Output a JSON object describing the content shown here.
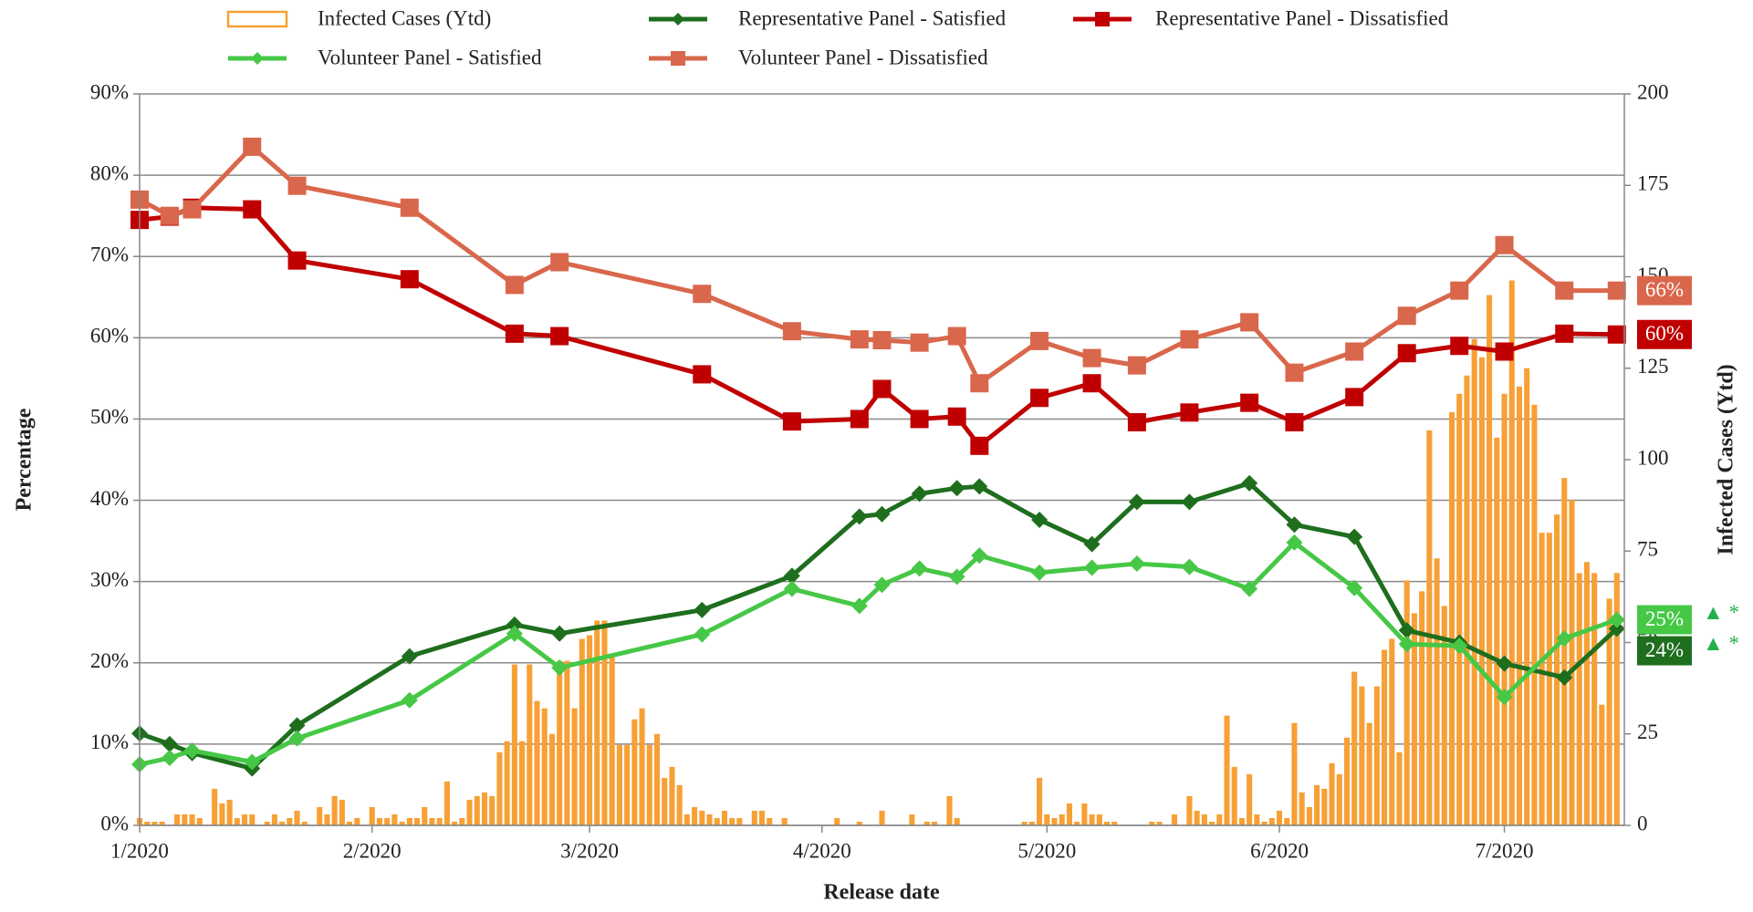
{
  "chart_data": {
    "type": "bar-line",
    "x_title": "Release date",
    "y_title": "Percentage",
    "y2_title": "Infected Cases (Ytd)",
    "xlim": [
      0,
      198
    ],
    "xticks": [
      {
        "value": 0,
        "label": "1/2020"
      },
      {
        "value": 31,
        "label": "2/2020"
      },
      {
        "value": 60,
        "label": "3/2020"
      },
      {
        "value": 91,
        "label": "4/2020"
      },
      {
        "value": 121,
        "label": "5/2020"
      },
      {
        "value": 152,
        "label": "6/2020"
      },
      {
        "value": 182,
        "label": "7/2020"
      }
    ],
    "ylim": [
      0,
      90
    ],
    "yticks": [
      {
        "value": 0,
        "label": "0%"
      },
      {
        "value": 10,
        "label": "10%"
      },
      {
        "value": 20,
        "label": "20%"
      },
      {
        "value": 30,
        "label": "30%"
      },
      {
        "value": 40,
        "label": "40%"
      },
      {
        "value": 50,
        "label": "50%"
      },
      {
        "value": 60,
        "label": "60%"
      },
      {
        "value": 70,
        "label": "70%"
      },
      {
        "value": 80,
        "label": "80%"
      },
      {
        "value": 90,
        "label": "90%"
      }
    ],
    "y2lim": [
      0,
      200
    ],
    "y2ticks": [
      0,
      25,
      50,
      75,
      100,
      125,
      150,
      175,
      200
    ],
    "grid": true,
    "x": [
      0,
      4,
      7,
      15,
      21,
      36,
      50,
      56,
      75,
      87,
      96,
      99,
      104,
      109,
      112,
      120,
      127,
      133,
      140,
      148,
      154,
      162,
      169,
      176,
      182,
      190,
      197
    ],
    "series": [
      {
        "name": "Infected Cases (Ytd)",
        "type": "bar",
        "axis": "y2",
        "color": "#f7a035",
        "x": [
          0,
          1,
          2,
          3,
          4,
          5,
          6,
          7,
          8,
          9,
          10,
          11,
          12,
          13,
          14,
          15,
          16,
          17,
          18,
          19,
          20,
          21,
          22,
          23,
          24,
          25,
          26,
          27,
          28,
          29,
          30,
          31,
          32,
          33,
          34,
          35,
          36,
          37,
          38,
          39,
          40,
          41,
          42,
          43,
          44,
          45,
          46,
          47,
          48,
          49,
          50,
          51,
          52,
          53,
          54,
          55,
          56,
          57,
          58,
          59,
          60,
          61,
          62,
          63,
          64,
          65,
          66,
          67,
          68,
          69,
          70,
          71,
          72,
          73,
          74,
          75,
          76,
          77,
          78,
          79,
          80,
          81,
          82,
          83,
          84,
          85,
          86,
          87,
          88,
          89,
          90,
          91,
          92,
          93,
          94,
          95,
          96,
          97,
          98,
          99,
          100,
          101,
          102,
          103,
          104,
          105,
          106,
          107,
          108,
          109,
          110,
          111,
          112,
          113,
          114,
          115,
          116,
          117,
          118,
          119,
          120,
          121,
          122,
          123,
          124,
          125,
          126,
          127,
          128,
          129,
          130,
          131,
          132,
          133,
          134,
          135,
          136,
          137,
          138,
          139,
          140,
          141,
          142,
          143,
          144,
          145,
          146,
          147,
          148,
          149,
          150,
          151,
          152,
          153,
          154,
          155,
          156,
          157,
          158,
          159,
          160,
          161,
          162,
          163,
          164,
          165,
          166,
          167,
          168,
          169,
          170,
          171,
          172,
          173,
          174,
          175,
          176,
          177,
          178,
          179,
          180,
          181,
          182,
          183,
          184,
          185,
          186,
          187,
          188,
          189,
          190,
          191,
          192,
          193,
          194,
          195,
          196,
          197
        ],
        "values": [
          2,
          1,
          1,
          1,
          0,
          3,
          3,
          3,
          2,
          0,
          10,
          6,
          7,
          2,
          3,
          3,
          0,
          1,
          3,
          1,
          2,
          4,
          1,
          0,
          5,
          3,
          8,
          7,
          1,
          2,
          0,
          5,
          2,
          2,
          3,
          1,
          2,
          2,
          5,
          2,
          2,
          12,
          1,
          2,
          7,
          8,
          9,
          8,
          20,
          23,
          44,
          23,
          44,
          34,
          32,
          25,
          45,
          45,
          32,
          51,
          52,
          56,
          56,
          47,
          22,
          22,
          29,
          32,
          22,
          25,
          13,
          16,
          11,
          3,
          5,
          4,
          3,
          2,
          4,
          2,
          2,
          0,
          4,
          4,
          2,
          0,
          2,
          0,
          0,
          0,
          0,
          0,
          0,
          2,
          0,
          0,
          1,
          0,
          0,
          4,
          0,
          0,
          0,
          3,
          0,
          1,
          1,
          0,
          8,
          2,
          0,
          0,
          0,
          0,
          0,
          0,
          0,
          0,
          1,
          1,
          13,
          3,
          2,
          3,
          6,
          1,
          6,
          3,
          3,
          1,
          1,
          0,
          0,
          0,
          0,
          1,
          1,
          0,
          3,
          0,
          8,
          4,
          3,
          1,
          3,
          30,
          16,
          2,
          14,
          3,
          1,
          2,
          4,
          2,
          28,
          9,
          5,
          11,
          10,
          17,
          14,
          24,
          42,
          38,
          28,
          38,
          48,
          51,
          20,
          67,
          58,
          64,
          108,
          73,
          60,
          113,
          118,
          123,
          133,
          128,
          145,
          106,
          118,
          149,
          120,
          125,
          115,
          80,
          80,
          85,
          95,
          89,
          69,
          72,
          69,
          33,
          62,
          69
        ]
      },
      {
        "name": "Representative Panel - Satisfied",
        "type": "line",
        "marker": "diamond",
        "color": "#1e6e1e",
        "values": [
          11.3,
          10.0,
          8.9,
          7.0,
          12.3,
          20.8,
          24.7,
          23.6,
          26.5,
          30.7,
          38.0,
          38.3,
          40.8,
          41.5,
          41.7,
          37.6,
          34.6,
          39.8,
          39.8,
          42.1,
          37.0,
          35.5,
          24.0,
          22.5,
          19.9,
          18.2,
          24.2
        ],
        "value_labels": [
          null,
          null,
          null,
          null,
          null,
          null,
          null,
          null,
          null,
          null,
          null,
          null,
          null,
          null,
          null,
          null,
          null,
          null,
          null,
          null,
          null,
          null,
          null,
          null,
          null,
          null,
          "24%"
        ],
        "annotation": "▲ *"
      },
      {
        "name": "Representative Panel - Dissatisfied",
        "type": "line",
        "marker": "square",
        "color": "#c00000",
        "values": [
          74.5,
          74.9,
          76.0,
          75.8,
          69.5,
          67.2,
          60.5,
          60.2,
          55.5,
          49.7,
          50.0,
          53.7,
          50.0,
          50.3,
          46.7,
          52.6,
          54.4,
          49.6,
          50.8,
          52.0,
          49.6,
          52.7,
          58.1,
          59.0,
          58.3,
          60.5,
          60.4
        ],
        "value_labels": [
          null,
          null,
          null,
          null,
          null,
          null,
          null,
          null,
          null,
          null,
          null,
          null,
          null,
          null,
          null,
          null,
          null,
          null,
          null,
          null,
          null,
          null,
          null,
          null,
          null,
          null,
          "60%"
        ]
      },
      {
        "name": "Volunteer Panel - Satisfied",
        "type": "line",
        "marker": "diamond",
        "color": "#46c846",
        "values": [
          7.5,
          8.3,
          9.2,
          7.8,
          10.7,
          15.4,
          23.6,
          19.4,
          23.5,
          29.1,
          27.0,
          29.6,
          31.6,
          30.6,
          33.2,
          31.1,
          31.7,
          32.2,
          31.8,
          29.1,
          34.8,
          29.2,
          22.3,
          22.1,
          15.8,
          23.0,
          25.3
        ],
        "value_labels": [
          null,
          null,
          null,
          null,
          null,
          null,
          null,
          null,
          null,
          null,
          null,
          null,
          null,
          null,
          null,
          null,
          null,
          null,
          null,
          null,
          null,
          null,
          null,
          null,
          null,
          null,
          "25%"
        ],
        "annotation": "▲ *"
      },
      {
        "name": "Volunteer Panel - Dissatisfied",
        "type": "line",
        "marker": "square",
        "color": "#d9674c",
        "values": [
          77.0,
          75.0,
          75.8,
          83.5,
          78.7,
          76.0,
          66.5,
          69.3,
          65.4,
          60.8,
          59.8,
          59.7,
          59.4,
          60.2,
          54.4,
          59.6,
          57.5,
          56.6,
          59.8,
          61.9,
          55.7,
          58.3,
          62.7,
          65.8,
          71.4,
          65.8,
          65.8
        ],
        "value_labels": [
          null,
          null,
          null,
          null,
          null,
          null,
          null,
          null,
          null,
          null,
          null,
          null,
          null,
          null,
          null,
          null,
          null,
          null,
          null,
          null,
          null,
          null,
          null,
          null,
          null,
          null,
          "66%"
        ]
      }
    ]
  }
}
